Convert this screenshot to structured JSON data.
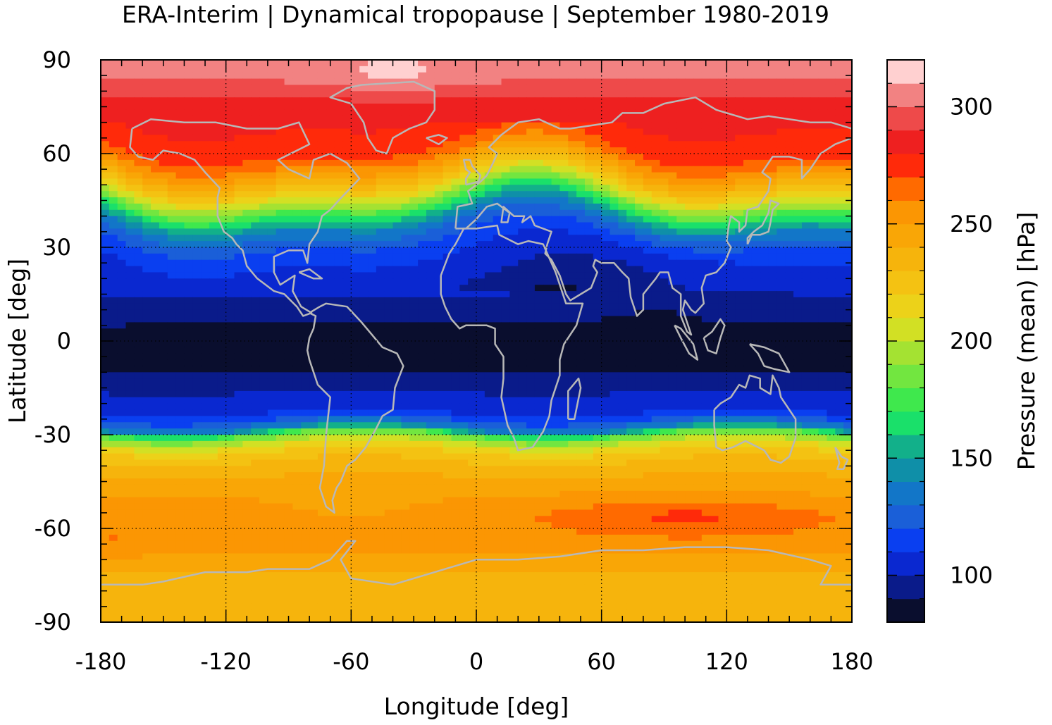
{
  "chart_data": {
    "type": "heatmap",
    "title": "ERA-Interim | Dynamical tropopause | September 1980-2019",
    "xlabel": "Longitude [deg]",
    "ylabel": "Latitude [deg]",
    "colorbar_label": "Pressure (mean) [hPa]",
    "xlim": [
      -180,
      180
    ],
    "ylim": [
      -90,
      90
    ],
    "x_ticks": [
      -180,
      -120,
      -60,
      0,
      60,
      120,
      180
    ],
    "y_ticks": [
      90,
      60,
      30,
      0,
      -30,
      -60,
      -90
    ],
    "x_tick_labels": [
      "-180",
      "-120",
      "-60",
      "0",
      "60",
      "120",
      "180"
    ],
    "y_tick_labels": [
      "90",
      "60",
      "30",
      "0",
      "-30",
      "-60",
      "-90"
    ],
    "colorbar_range": [
      80,
      320
    ],
    "colorbar_ticks": [
      100,
      150,
      200,
      250,
      300
    ],
    "colorbar_tick_labels": [
      "100",
      "150",
      "200",
      "250",
      "300"
    ],
    "colorbar_step": 10,
    "colorbar_colors": [
      "#0a0e2e",
      "#0a1b8a",
      "#0a28d0",
      "#0a3ff0",
      "#1a5fd8",
      "#1276c8",
      "#0f8fa8",
      "#12b08a",
      "#1ae06a",
      "#3fe84d",
      "#72e640",
      "#a4e232",
      "#d2e024",
      "#ecd219",
      "#f4c212",
      "#f6b40c",
      "#f9a606",
      "#fb9603",
      "#ff6a00",
      "#ff2a0a",
      "#ee2020",
      "#ee4a4a",
      "#f28282",
      "#ffd0d0"
    ],
    "grid": true,
    "grid_style": "dotted",
    "pressure_profile": {
      "lat": [
        90,
        84,
        78,
        72,
        66,
        60,
        56,
        50,
        46,
        42,
        38,
        34,
        30,
        26,
        20,
        14,
        10,
        0,
        -10,
        -16,
        -20,
        -24,
        -28,
        -30,
        -34,
        -40,
        -46,
        -50,
        -56,
        -62,
        -70,
        -76,
        -82,
        -90
      ],
      "pressure_hPa": [
        305,
        300,
        290,
        282,
        276,
        268,
        250,
        220,
        195,
        165,
        140,
        125,
        115,
        110,
        103,
        100,
        92,
        88,
        90,
        100,
        104,
        112,
        140,
        180,
        215,
        235,
        244,
        250,
        258,
        256,
        248,
        238,
        232,
        232
      ]
    },
    "coastline_color": "#b8b8b8"
  }
}
